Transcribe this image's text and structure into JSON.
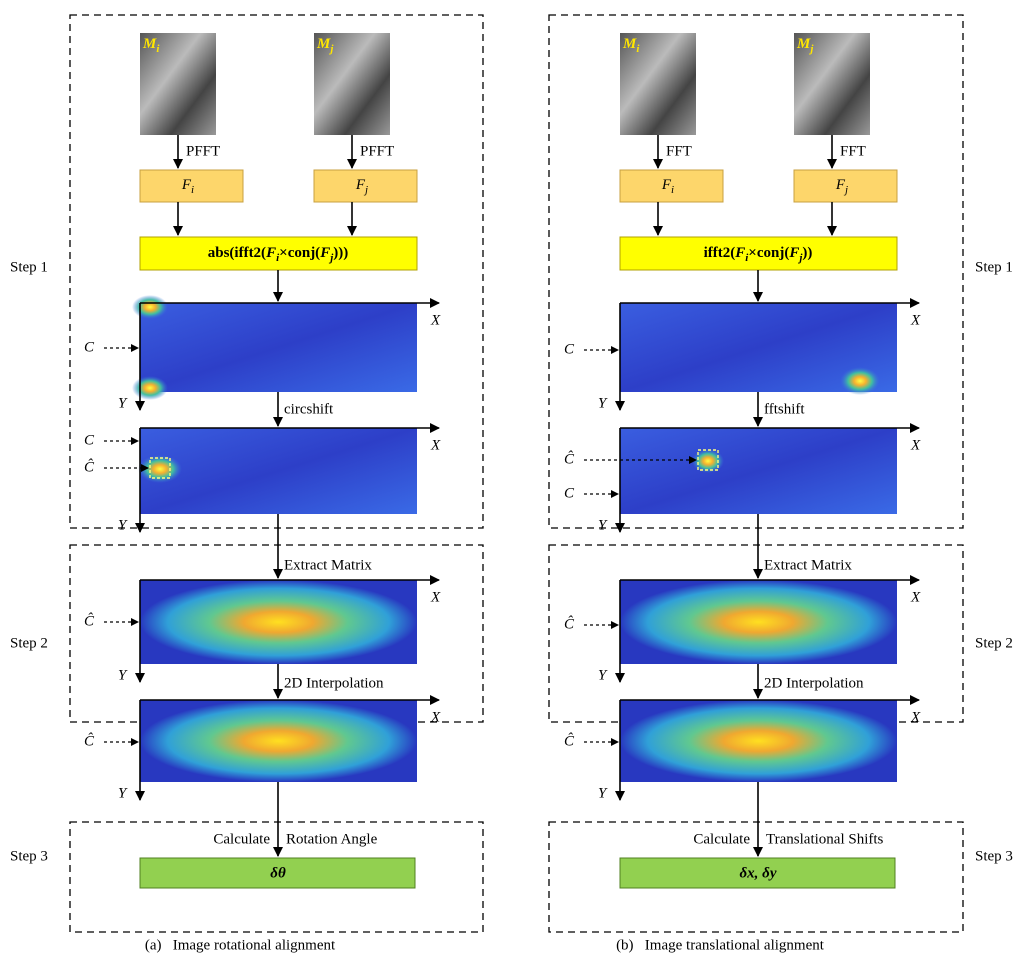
{
  "steps_left": [
    "Step 1",
    "Step 2",
    "Step 3"
  ],
  "steps_right": [
    "Step 1",
    "Step 2",
    "Step 3"
  ],
  "panels": [
    {
      "images": [
        {
          "base": "M",
          "sub": "i"
        },
        {
          "base": "M",
          "sub": "j"
        }
      ],
      "transforms": [
        "PFFT",
        "PFFT"
      ],
      "spectra": [
        {
          "base": "F",
          "sub": "i"
        },
        {
          "base": "F",
          "sub": "j"
        }
      ],
      "formula": [
        "abs(ifft2(",
        "F",
        "i",
        "×conj(",
        "F",
        "j",
        ")))"
      ],
      "heatmaps": [
        {
          "x": "X",
          "y": "Y",
          "markers": [
            "C"
          ]
        },
        {
          "x": "X",
          "y": "Y",
          "markers": [
            "C",
            "Ĉ"
          ]
        },
        {
          "x": "X",
          "y": "Y",
          "markers": [
            "Ĉ"
          ]
        },
        {
          "x": "X",
          "y": "Y",
          "markers": [
            "Ĉ"
          ]
        }
      ],
      "operations": [
        "circshift",
        "Extract Matrix",
        "2D Interpolation"
      ],
      "calculate": [
        "Calculate",
        "Rotation Angle"
      ],
      "result": "δθ",
      "caption": "(a)   Image rotational alignment"
    },
    {
      "images": [
        {
          "base": "M",
          "sub": "i"
        },
        {
          "base": "M",
          "sub": "j"
        }
      ],
      "transforms": [
        "FFT",
        "FFT"
      ],
      "spectra": [
        {
          "base": "F",
          "sub": "i"
        },
        {
          "base": "F",
          "sub": "j"
        }
      ],
      "formula": [
        "ifft2(",
        "F",
        "i",
        "×conj(",
        "F",
        "j",
        "))"
      ],
      "heatmaps": [
        {
          "x": "X",
          "y": "Y",
          "markers": [
            "C"
          ]
        },
        {
          "x": "X",
          "y": "Y",
          "markers": [
            "Ĉ",
            "C"
          ]
        },
        {
          "x": "X",
          "y": "Y",
          "markers": [
            "Ĉ"
          ]
        },
        {
          "x": "X",
          "y": "Y",
          "markers": [
            "Ĉ"
          ]
        }
      ],
      "operations": [
        "fftshift",
        "Extract Matrix",
        "2D Interpolation"
      ],
      "calculate": [
        "Calculate",
        "Translational Shifts"
      ],
      "result": "δx, δy",
      "caption": "(b)   Image translational alignment"
    }
  ]
}
